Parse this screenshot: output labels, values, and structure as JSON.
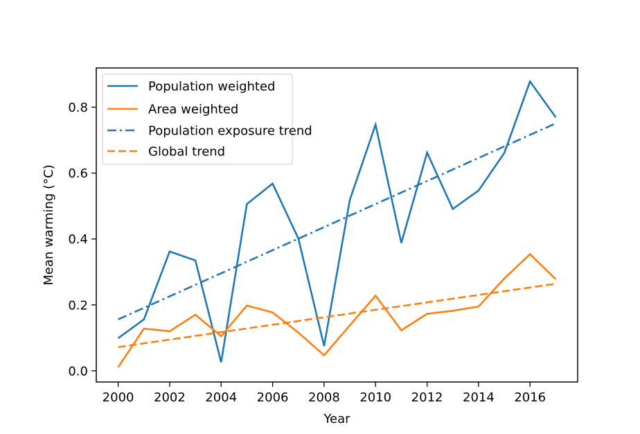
{
  "chart_data": {
    "type": "line",
    "title": "",
    "xlabel": "Year",
    "ylabel": "Mean warming (°C)",
    "xlim": [
      1999.15,
      2017.85
    ],
    "ylim": [
      -0.034,
      0.919
    ],
    "xticks": [
      2000,
      2002,
      2004,
      2006,
      2008,
      2010,
      2012,
      2014,
      2016
    ],
    "xtick_labels": [
      "2000",
      "2002",
      "2004",
      "2006",
      "2008",
      "2010",
      "2012",
      "2014",
      "2016"
    ],
    "yticks": [
      0.0,
      0.2,
      0.4,
      0.6,
      0.8
    ],
    "ytick_labels": [
      "0.0",
      "0.2",
      "0.4",
      "0.6",
      "0.8"
    ],
    "grid": false,
    "legend_position": "top-left",
    "x": [
      2000,
      2001,
      2002,
      2003,
      2004,
      2005,
      2006,
      2007,
      2008,
      2009,
      2010,
      2011,
      2012,
      2013,
      2014,
      2015,
      2016,
      2017
    ],
    "series": [
      {
        "name": "Population weighted",
        "color": "#1f77b4",
        "style": "solid",
        "values": [
          0.099,
          0.156,
          0.362,
          0.335,
          0.026,
          0.506,
          0.568,
          0.401,
          0.075,
          0.519,
          0.747,
          0.388,
          0.662,
          0.491,
          0.547,
          0.661,
          0.878,
          0.769
        ]
      },
      {
        "name": "Area weighted",
        "color": "#ff7f0e",
        "style": "solid",
        "values": [
          0.011,
          0.128,
          0.12,
          0.17,
          0.105,
          0.198,
          0.177,
          0.116,
          0.047,
          0.138,
          0.228,
          0.123,
          0.173,
          0.182,
          0.195,
          0.28,
          0.354,
          0.278
        ]
      },
      {
        "name": "Population exposure trend",
        "color": "#1f77b4",
        "style": "dashdot",
        "x_range": [
          2000,
          2017
        ],
        "values": [
          0.156,
          0.751
        ]
      },
      {
        "name": "Global trend",
        "color": "#ff7f0e",
        "style": "dashed",
        "x_range": [
          2000,
          2017
        ],
        "values": [
          0.072,
          0.264
        ]
      }
    ]
  }
}
